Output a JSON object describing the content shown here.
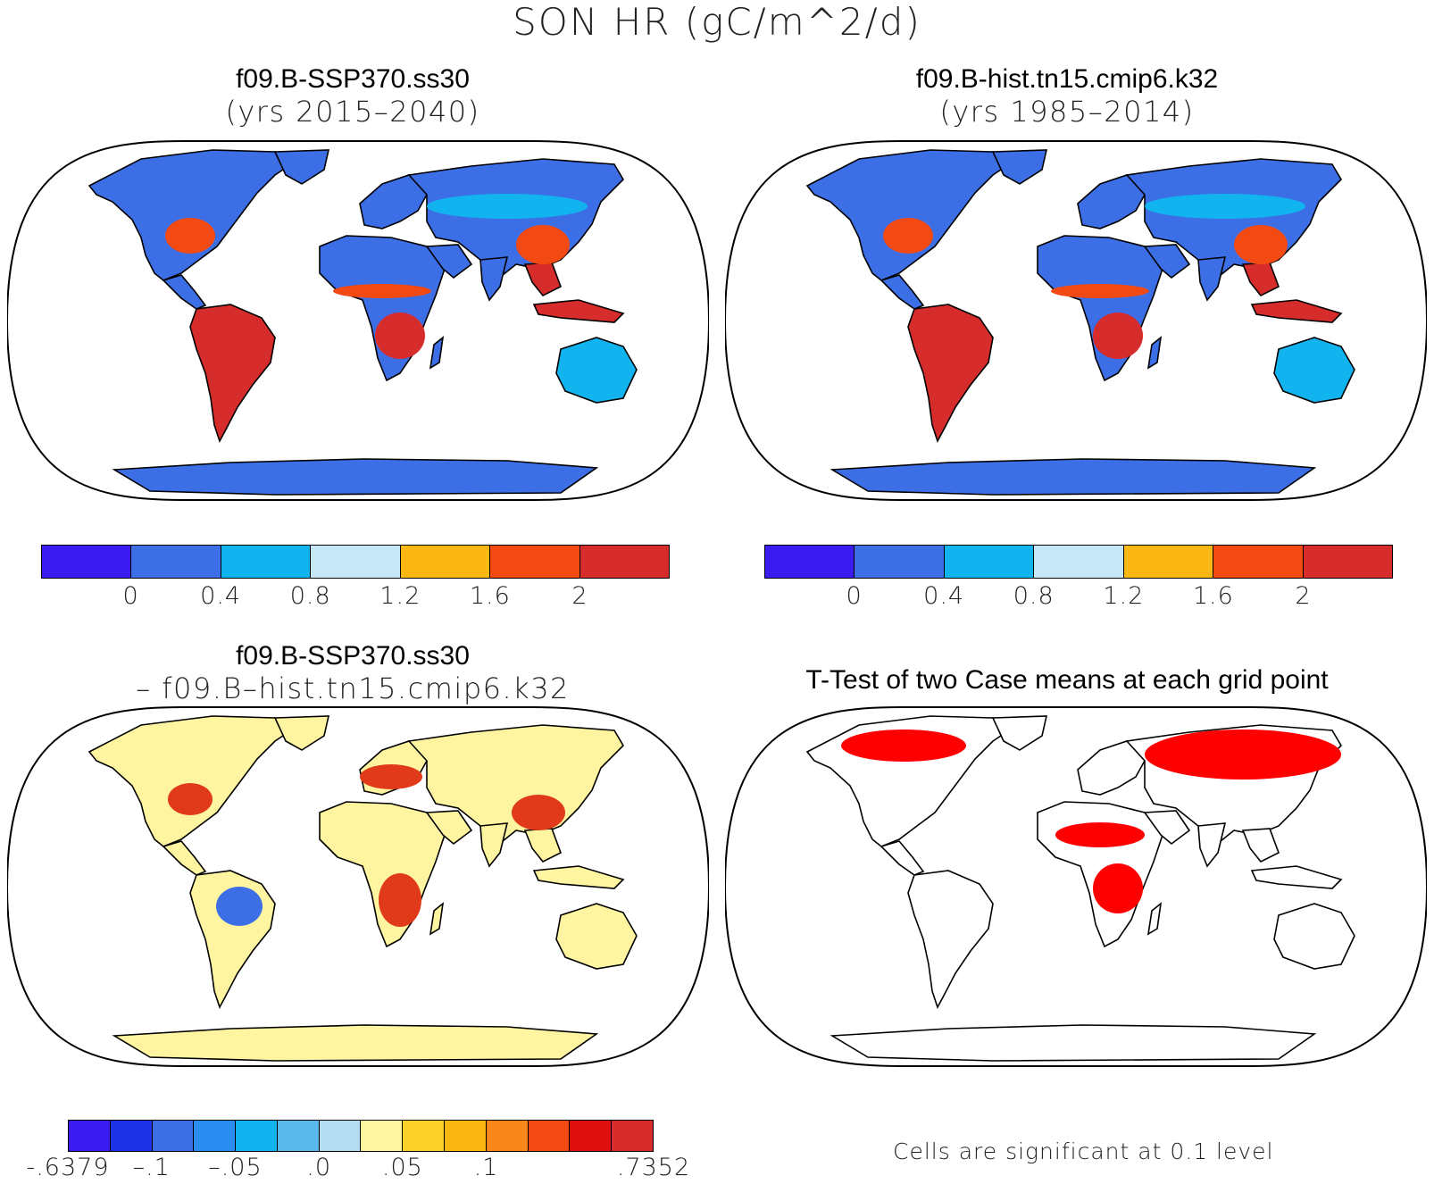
{
  "title": "SON HR (gC/m^2/d)",
  "panels": {
    "top_left": {
      "line1": "f09.B-SSP370.ss30",
      "line2": "(yrs 2015–2040)"
    },
    "top_right": {
      "line1": "f09.B-hist.tn15.cmip6.k32",
      "line2": "(yrs 1985–2014)"
    },
    "bottom_left": {
      "line1": "f09.B-SSP370.ss30",
      "line2": "– f09.B–hist.tn15.cmip6.k32"
    },
    "bottom_right": {
      "line1": "T-Test of two Case means at each grid point"
    }
  },
  "colorbar_top": {
    "colors": [
      "#3a1bf0",
      "#3c6ee6",
      "#12b4f0",
      "#c6e8f6",
      "#fbb714",
      "#f24a12",
      "#d62c2c"
    ],
    "ticks": [
      "0",
      "0.4",
      "0.8",
      "1.2",
      "1.6",
      "2"
    ]
  },
  "colorbar_diff": {
    "colors": [
      "#3a1bf0",
      "#1e32e6",
      "#3c6ee6",
      "#2a8cf0",
      "#12b4f0",
      "#5ab8ec",
      "#b4dcf2",
      "#fff5a0",
      "#fcd22a",
      "#fbb714",
      "#f8861a",
      "#f24a12",
      "#e01010",
      "#d62c2c"
    ],
    "ticks": [
      "-.6379",
      "–.1",
      "–.05",
      ".0",
      ".05",
      ".1",
      ".7352"
    ]
  },
  "significance_note": "Cells are significant at 0.1 level",
  "map_colors": {
    "ocean": "#ffffff",
    "land_low": "#3c6ee6",
    "land_mid": "#12b4f0",
    "land_high": "#d62c2c",
    "land_orange": "#f24a12",
    "diff_base": "#fff5a0",
    "diff_hot": "#e03a1a",
    "significant": "#ff0000"
  }
}
